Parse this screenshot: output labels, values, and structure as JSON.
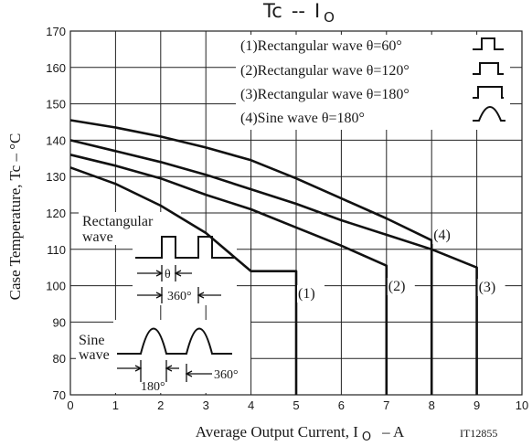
{
  "chart_data": {
    "type": "line",
    "title_main": "Tc",
    "title_sep": "--",
    "title_i": "I",
    "title_sub": "O",
    "xlabel_pre": "Average Output Current, I",
    "xlabel_sub": "O",
    "xlabel_post": "–  A",
    "ylabel": "Case Temperature, Tc  –  °C",
    "xlim": [
      0,
      10
    ],
    "ylim": [
      70,
      170
    ],
    "x_ticks": [
      "0",
      "1",
      "2",
      "3",
      "4",
      "5",
      "6",
      "7",
      "8",
      "9",
      "10"
    ],
    "y_ticks": [
      "70",
      "80",
      "90",
      "100",
      "110",
      "120",
      "130",
      "140",
      "150",
      "160",
      "170"
    ],
    "grid": true,
    "legend_position": "top-right",
    "series": [
      {
        "name": "(1)Rectangular wave θ=60°",
        "label": "(1)",
        "x": [
          0,
          1,
          2,
          3,
          4,
          5,
          5
        ],
        "y": [
          132.5,
          128,
          122,
          114.5,
          104,
          104,
          70
        ]
      },
      {
        "name": "(2)Rectangular wave θ=120°",
        "label": "(2)",
        "x": [
          0,
          1,
          2,
          3,
          4,
          5,
          6,
          7,
          7
        ],
        "y": [
          136,
          133,
          129.5,
          125,
          121,
          116,
          111,
          105.5,
          70
        ]
      },
      {
        "name": "(3)Rectangular wave θ=180°",
        "label": "(3)",
        "x": [
          0,
          1,
          2,
          3,
          4,
          5,
          6,
          7,
          8,
          9,
          9
        ],
        "y": [
          140,
          137,
          134,
          130.5,
          126.5,
          122.5,
          118,
          114,
          110,
          105,
          70
        ]
      },
      {
        "name": "(4)Sine wave θ=180°",
        "label": "(4)",
        "x": [
          0,
          1,
          2,
          3,
          4,
          5,
          6,
          7,
          8,
          8
        ],
        "y": [
          145.5,
          143.5,
          141,
          138,
          134.5,
          129.5,
          124,
          118.5,
          112.5,
          70
        ]
      }
    ],
    "annotations": {
      "rect_label_1": "Rectangular",
      "rect_label_2": "wave",
      "theta": "θ",
      "rect_period": "360°",
      "sine_label_1": "Sine",
      "sine_label_2": "wave",
      "sine_half": "180°",
      "sine_period": "360°",
      "figure_code": "IT12855"
    }
  }
}
